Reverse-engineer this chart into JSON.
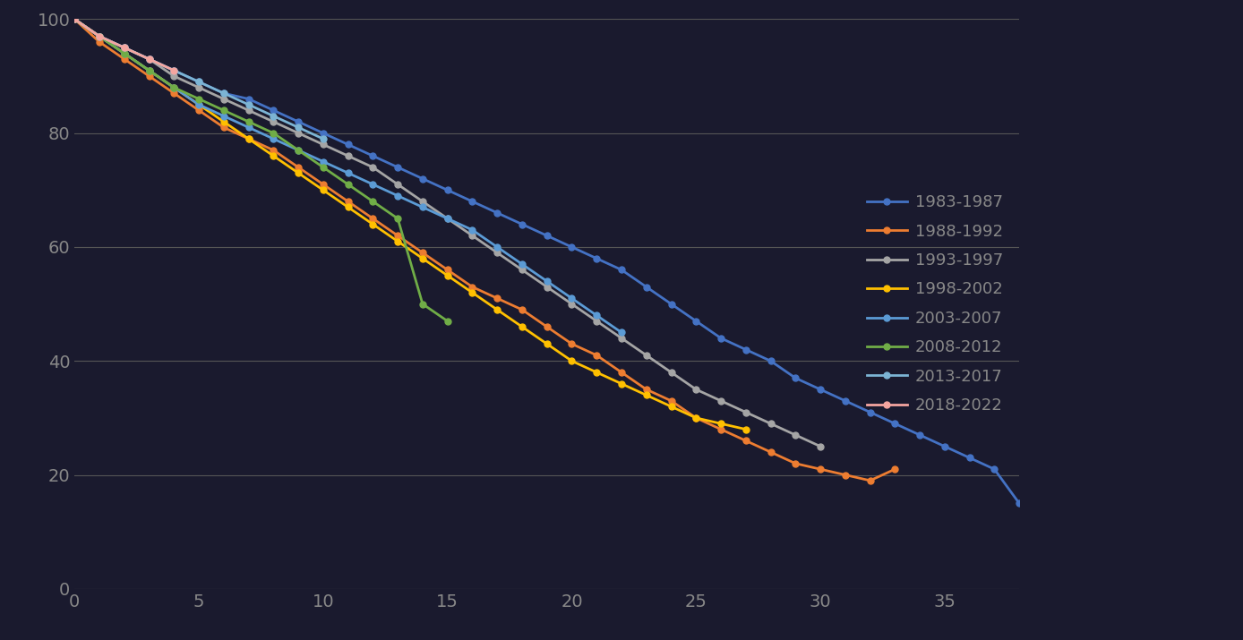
{
  "background_color": "#1a1a2e",
  "plot_bg_color": "#1a1a2e",
  "grid_color": "#555555",
  "text_color": "#888888",
  "ylim": [
    0,
    100
  ],
  "xlim": [
    0,
    38
  ],
  "yticks": [
    0,
    20,
    40,
    60,
    80,
    100
  ],
  "xticks": [
    0,
    5,
    10,
    15,
    20,
    25,
    30,
    35
  ],
  "series": [
    {
      "label": "1983-1987",
      "color": "#4472c4",
      "marker": "o",
      "x": [
        0,
        1,
        2,
        3,
        4,
        5,
        6,
        7,
        8,
        9,
        10,
        11,
        12,
        13,
        14,
        15,
        16,
        17,
        18,
        19,
        20,
        21,
        22,
        23,
        24,
        25,
        26,
        27,
        28,
        29,
        30,
        31,
        32,
        33,
        34,
        35,
        36,
        37,
        38
      ],
      "y": [
        100,
        97,
        95,
        93,
        91,
        89,
        87,
        86,
        84,
        82,
        80,
        78,
        76,
        74,
        72,
        70,
        68,
        66,
        64,
        62,
        60,
        58,
        56,
        53,
        50,
        47,
        44,
        42,
        40,
        37,
        35,
        33,
        31,
        29,
        27,
        25,
        23,
        21,
        15
      ]
    },
    {
      "label": "1988-1992",
      "color": "#ed7d31",
      "marker": "o",
      "x": [
        0,
        1,
        2,
        3,
        4,
        5,
        6,
        7,
        8,
        9,
        10,
        11,
        12,
        13,
        14,
        15,
        16,
        17,
        18,
        19,
        20,
        21,
        22,
        23,
        24,
        25,
        26,
        27,
        28,
        29,
        30,
        31,
        32,
        33
      ],
      "y": [
        100,
        96,
        93,
        90,
        87,
        84,
        81,
        79,
        77,
        74,
        71,
        68,
        65,
        62,
        59,
        56,
        53,
        51,
        49,
        46,
        43,
        41,
        38,
        35,
        33,
        30,
        28,
        26,
        24,
        22,
        21,
        20,
        19,
        21
      ]
    },
    {
      "label": "1993-1997",
      "color": "#a5a5a5",
      "marker": "o",
      "x": [
        0,
        1,
        2,
        3,
        4,
        5,
        6,
        7,
        8,
        9,
        10,
        11,
        12,
        13,
        14,
        15,
        16,
        17,
        18,
        19,
        20,
        21,
        22,
        23,
        24,
        25,
        26,
        27,
        28,
        29,
        30
      ],
      "y": [
        100,
        97,
        95,
        93,
        90,
        88,
        86,
        84,
        82,
        80,
        78,
        76,
        74,
        71,
        68,
        65,
        62,
        59,
        56,
        53,
        50,
        47,
        44,
        41,
        38,
        35,
        33,
        31,
        29,
        27,
        25
      ]
    },
    {
      "label": "1998-2002",
      "color": "#ffc000",
      "marker": "o",
      "x": [
        0,
        1,
        2,
        3,
        4,
        5,
        6,
        7,
        8,
        9,
        10,
        11,
        12,
        13,
        14,
        15,
        16,
        17,
        18,
        19,
        20,
        21,
        22,
        23,
        24,
        25,
        26,
        27
      ],
      "y": [
        100,
        97,
        94,
        91,
        88,
        85,
        82,
        79,
        76,
        73,
        70,
        67,
        64,
        61,
        58,
        55,
        52,
        49,
        46,
        43,
        40,
        38,
        36,
        34,
        32,
        30,
        29,
        28
      ]
    },
    {
      "label": "2003-2007",
      "color": "#5b9bd5",
      "marker": "o",
      "x": [
        0,
        1,
        2,
        3,
        4,
        5,
        6,
        7,
        8,
        9,
        10,
        11,
        12,
        13,
        14,
        15,
        16,
        17,
        18,
        19,
        20,
        21,
        22
      ],
      "y": [
        100,
        97,
        94,
        91,
        88,
        85,
        83,
        81,
        79,
        77,
        75,
        73,
        71,
        69,
        67,
        65,
        63,
        60,
        57,
        54,
        51,
        48,
        45
      ]
    },
    {
      "label": "2008-2012",
      "color": "#70ad47",
      "marker": "o",
      "x": [
        0,
        1,
        2,
        3,
        4,
        5,
        6,
        7,
        8,
        9,
        10,
        11,
        12,
        13,
        14,
        15
      ],
      "y": [
        100,
        97,
        94,
        91,
        88,
        86,
        84,
        82,
        80,
        77,
        74,
        71,
        68,
        65,
        50,
        47
      ]
    },
    {
      "label": "2013-2017",
      "color": "#7cb4d4",
      "marker": "o",
      "x": [
        0,
        1,
        2,
        3,
        4,
        5,
        6,
        7,
        8,
        9,
        10
      ],
      "y": [
        100,
        97,
        95,
        93,
        91,
        89,
        87,
        85,
        83,
        81,
        79
      ]
    },
    {
      "label": "2018-2022",
      "color": "#f4a5a0",
      "marker": "o",
      "x": [
        0,
        1,
        2,
        3,
        4
      ],
      "y": [
        100,
        97,
        95,
        93,
        91
      ]
    }
  ],
  "legend_fontsize": 13,
  "tick_fontsize": 14,
  "linewidth": 2.0,
  "markersize": 5
}
